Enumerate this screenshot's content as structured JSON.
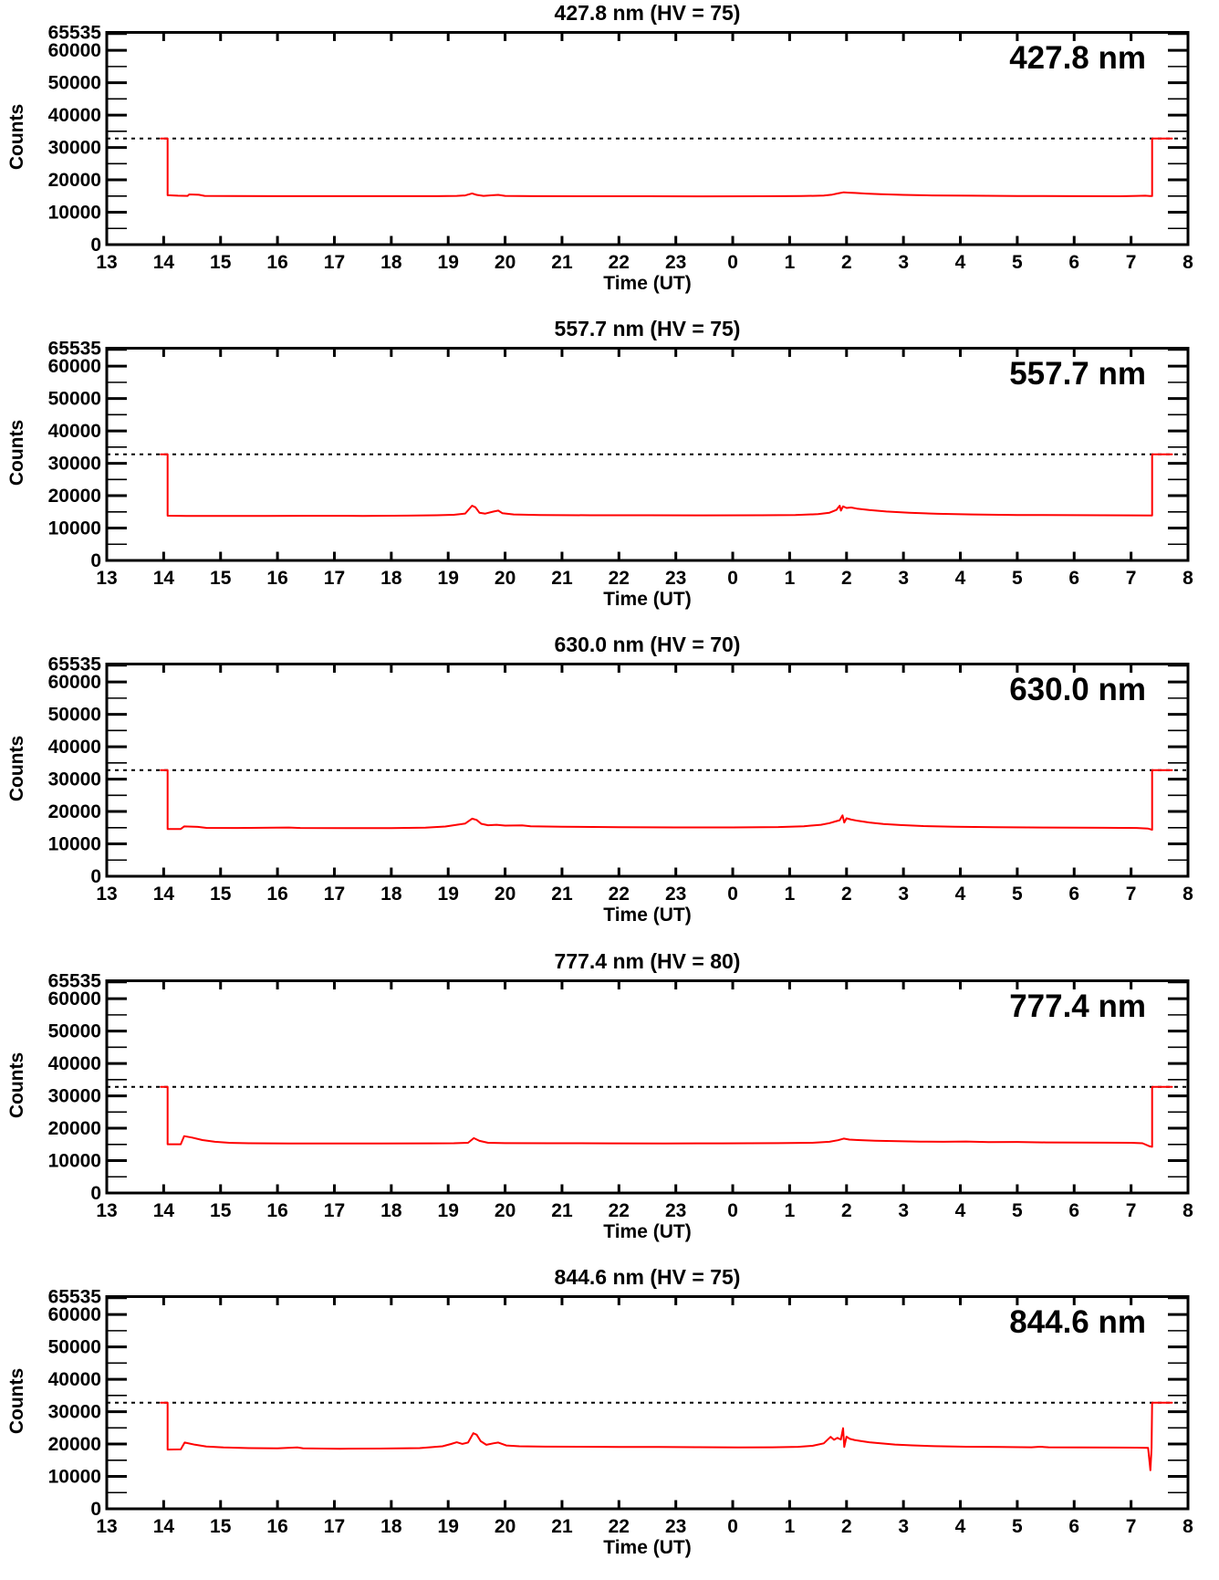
{
  "figure": {
    "background": "#ffffff",
    "trace_color": "#ff0000",
    "axis_color": "#000000"
  },
  "axes": {
    "y_label": "Counts",
    "x_label": "Time (UT)",
    "y_tick_labels": [
      "0",
      "10000",
      "20000",
      "30000",
      "40000",
      "50000",
      "60000",
      "65535"
    ],
    "y_tick_values": [
      0,
      10000,
      20000,
      30000,
      40000,
      50000,
      60000,
      65535
    ],
    "y_minor_tick_values": [
      5000,
      15000,
      25000,
      35000,
      45000,
      55000,
      65000
    ],
    "x_tick_labels": [
      "13",
      "14",
      "15",
      "16",
      "17",
      "18",
      "19",
      "20",
      "21",
      "22",
      "23",
      "0",
      "1",
      "2",
      "3",
      "4",
      "5",
      "6",
      "7",
      "8"
    ],
    "x_tick_hours": [
      13,
      14,
      15,
      16,
      17,
      18,
      19,
      20,
      21,
      22,
      23,
      0,
      1,
      2,
      3,
      4,
      5,
      6,
      7,
      8
    ]
  },
  "chart_data": [
    {
      "type": "line",
      "title": "427.8 nm (HV = 75)",
      "inplot_label": "427.8 nm",
      "wavelength_nm": 427.8,
      "hv": 75,
      "xlabel": "Time (UT)",
      "ylabel": "Counts",
      "ylim": [
        0,
        65535
      ],
      "threshold_line": 32767,
      "line_color": "#ff0000",
      "x_unit": "UT decimal hour",
      "points": [
        [
          13.95,
          32767
        ],
        [
          14.07,
          32767
        ],
        [
          14.07,
          15250
        ],
        [
          14.25,
          15100
        ],
        [
          14.42,
          15050
        ],
        [
          14.45,
          15500
        ],
        [
          14.62,
          15400
        ],
        [
          14.72,
          15050
        ],
        [
          15.2,
          15000
        ],
        [
          16,
          14980
        ],
        [
          17,
          14960
        ],
        [
          18,
          14980
        ],
        [
          18.8,
          14960
        ],
        [
          19.15,
          15050
        ],
        [
          19.3,
          15200
        ],
        [
          19.42,
          15800
        ],
        [
          19.5,
          15350
        ],
        [
          19.62,
          15050
        ],
        [
          19.78,
          15250
        ],
        [
          19.88,
          15350
        ],
        [
          20,
          15050
        ],
        [
          20.5,
          14960
        ],
        [
          21.5,
          14930
        ],
        [
          22.5,
          14930
        ],
        [
          23.5,
          14920
        ],
        [
          0.5,
          14940
        ],
        [
          1.2,
          15000
        ],
        [
          1.6,
          15150
        ],
        [
          1.75,
          15450
        ],
        [
          1.85,
          15800
        ],
        [
          1.95,
          16150
        ],
        [
          2.05,
          16050
        ],
        [
          2.15,
          15950
        ],
        [
          2.35,
          15750
        ],
        [
          2.6,
          15550
        ],
        [
          3,
          15350
        ],
        [
          3.5,
          15200
        ],
        [
          4.2,
          15100
        ],
        [
          5,
          15020
        ],
        [
          6,
          14960
        ],
        [
          6.8,
          14930
        ],
        [
          7.1,
          15050
        ],
        [
          7.25,
          15120
        ],
        [
          7.33,
          15020
        ],
        [
          7.37,
          15000
        ],
        [
          7.37,
          32767
        ],
        [
          7.72,
          32767
        ]
      ]
    },
    {
      "type": "line",
      "title": "557.7 nm (HV = 75)",
      "inplot_label": "557.7 nm",
      "wavelength_nm": 557.7,
      "hv": 75,
      "xlabel": "Time (UT)",
      "ylabel": "Counts",
      "ylim": [
        0,
        65535
      ],
      "threshold_line": 32767,
      "line_color": "#ff0000",
      "x_unit": "UT decimal hour",
      "points": [
        [
          13.95,
          32767
        ],
        [
          14.07,
          32767
        ],
        [
          14.07,
          13800
        ],
        [
          14.4,
          13750
        ],
        [
          15,
          13720
        ],
        [
          15.8,
          13750
        ],
        [
          16.5,
          13780
        ],
        [
          17.5,
          13750
        ],
        [
          18.3,
          13850
        ],
        [
          18.8,
          13950
        ],
        [
          19.1,
          14100
        ],
        [
          19.3,
          14500
        ],
        [
          19.42,
          16900
        ],
        [
          19.48,
          16400
        ],
        [
          19.55,
          14700
        ],
        [
          19.65,
          14450
        ],
        [
          19.8,
          15100
        ],
        [
          19.88,
          15400
        ],
        [
          19.95,
          14600
        ],
        [
          20.15,
          14200
        ],
        [
          20.6,
          14050
        ],
        [
          21.5,
          13950
        ],
        [
          22.5,
          13950
        ],
        [
          23.5,
          13930
        ],
        [
          0.5,
          13960
        ],
        [
          1.1,
          14050
        ],
        [
          1.5,
          14300
        ],
        [
          1.7,
          14750
        ],
        [
          1.82,
          15600
        ],
        [
          1.88,
          16900
        ],
        [
          1.9,
          15400
        ],
        [
          1.94,
          16700
        ],
        [
          2,
          16200
        ],
        [
          2.08,
          16350
        ],
        [
          2.18,
          16000
        ],
        [
          2.4,
          15550
        ],
        [
          2.7,
          15100
        ],
        [
          3.1,
          14700
        ],
        [
          3.6,
          14400
        ],
        [
          4.2,
          14200
        ],
        [
          5,
          14050
        ],
        [
          6,
          13980
        ],
        [
          7,
          13920
        ],
        [
          7.37,
          13900
        ],
        [
          7.37,
          32767
        ],
        [
          7.72,
          32767
        ]
      ]
    },
    {
      "type": "line",
      "title": "630.0 nm (HV = 70)",
      "inplot_label": "630.0 nm",
      "wavelength_nm": 630.0,
      "hv": 70,
      "xlabel": "Time (UT)",
      "ylabel": "Counts",
      "ylim": [
        0,
        65535
      ],
      "threshold_line": 32767,
      "line_color": "#ff0000",
      "x_unit": "UT decimal hour",
      "points": [
        [
          13.95,
          32767
        ],
        [
          14.07,
          32767
        ],
        [
          14.07,
          14600
        ],
        [
          14.3,
          14600
        ],
        [
          14.36,
          15400
        ],
        [
          14.6,
          15250
        ],
        [
          14.75,
          14950
        ],
        [
          15.3,
          14900
        ],
        [
          16.2,
          15050
        ],
        [
          16.4,
          14900
        ],
        [
          17.2,
          14850
        ],
        [
          18,
          14880
        ],
        [
          18.6,
          15000
        ],
        [
          18.95,
          15350
        ],
        [
          19.15,
          15900
        ],
        [
          19.3,
          16300
        ],
        [
          19.42,
          17800
        ],
        [
          19.5,
          17400
        ],
        [
          19.58,
          16200
        ],
        [
          19.7,
          15750
        ],
        [
          19.85,
          15900
        ],
        [
          20,
          15650
        ],
        [
          20.3,
          15700
        ],
        [
          20.45,
          15450
        ],
        [
          21,
          15300
        ],
        [
          22,
          15150
        ],
        [
          23,
          15080
        ],
        [
          0,
          15080
        ],
        [
          0.8,
          15180
        ],
        [
          1.25,
          15450
        ],
        [
          1.55,
          15900
        ],
        [
          1.7,
          16400
        ],
        [
          1.8,
          16900
        ],
        [
          1.88,
          17300
        ],
        [
          1.93,
          18800
        ],
        [
          1.96,
          16600
        ],
        [
          2,
          17900
        ],
        [
          2.08,
          17500
        ],
        [
          2.2,
          17100
        ],
        [
          2.4,
          16600
        ],
        [
          2.65,
          16150
        ],
        [
          2.95,
          15800
        ],
        [
          3.35,
          15500
        ],
        [
          3.9,
          15300
        ],
        [
          4.6,
          15150
        ],
        [
          5.5,
          15050
        ],
        [
          6.5,
          14980
        ],
        [
          7.1,
          14900
        ],
        [
          7.3,
          14700
        ],
        [
          7.37,
          14350
        ],
        [
          7.37,
          32767
        ],
        [
          7.72,
          32767
        ]
      ]
    },
    {
      "type": "line",
      "title": "777.4 nm (HV = 80)",
      "inplot_label": "777.4 nm",
      "wavelength_nm": 777.4,
      "hv": 80,
      "xlabel": "Time (UT)",
      "ylabel": "Counts",
      "ylim": [
        0,
        65535
      ],
      "threshold_line": 32767,
      "line_color": "#ff0000",
      "x_unit": "UT decimal hour",
      "points": [
        [
          13.95,
          32767
        ],
        [
          14.07,
          32767
        ],
        [
          14.07,
          15050
        ],
        [
          14.3,
          15050
        ],
        [
          14.36,
          17550
        ],
        [
          14.5,
          17100
        ],
        [
          14.68,
          16350
        ],
        [
          14.9,
          15800
        ],
        [
          15.15,
          15500
        ],
        [
          15.5,
          15350
        ],
        [
          16.2,
          15280
        ],
        [
          17,
          15300
        ],
        [
          17.8,
          15280
        ],
        [
          18.7,
          15320
        ],
        [
          19.1,
          15350
        ],
        [
          19.35,
          15500
        ],
        [
          19.45,
          16950
        ],
        [
          19.55,
          16100
        ],
        [
          19.7,
          15500
        ],
        [
          20,
          15400
        ],
        [
          20.8,
          15350
        ],
        [
          21.8,
          15320
        ],
        [
          22.8,
          15300
        ],
        [
          23.8,
          15320
        ],
        [
          0.8,
          15400
        ],
        [
          1.4,
          15500
        ],
        [
          1.7,
          15800
        ],
        [
          1.85,
          16300
        ],
        [
          1.95,
          16800
        ],
        [
          2.05,
          16500
        ],
        [
          2.2,
          16350
        ],
        [
          2.5,
          16150
        ],
        [
          2.9,
          16000
        ],
        [
          3.3,
          15880
        ],
        [
          3.7,
          15800
        ],
        [
          4.1,
          15900
        ],
        [
          4.5,
          15720
        ],
        [
          5,
          15750
        ],
        [
          5.5,
          15620
        ],
        [
          6.1,
          15600
        ],
        [
          6.6,
          15520
        ],
        [
          7,
          15500
        ],
        [
          7.2,
          15350
        ],
        [
          7.33,
          14400
        ],
        [
          7.37,
          14250
        ],
        [
          7.37,
          32767
        ],
        [
          7.72,
          32767
        ]
      ]
    },
    {
      "type": "line",
      "title": "844.6 nm (HV = 75)",
      "inplot_label": "844.6 nm",
      "wavelength_nm": 844.6,
      "hv": 75,
      "xlabel": "Time (UT)",
      "ylabel": "Counts",
      "ylim": [
        0,
        65535
      ],
      "threshold_line": 32767,
      "line_color": "#ff0000",
      "x_unit": "UT decimal hour",
      "points": [
        [
          13.95,
          32767
        ],
        [
          14.07,
          32767
        ],
        [
          14.07,
          18300
        ],
        [
          14.3,
          18350
        ],
        [
          14.37,
          20450
        ],
        [
          14.55,
          19800
        ],
        [
          14.75,
          19250
        ],
        [
          15.05,
          18950
        ],
        [
          15.5,
          18750
        ],
        [
          16,
          18650
        ],
        [
          16.35,
          18950
        ],
        [
          16.45,
          18650
        ],
        [
          17.1,
          18550
        ],
        [
          17.8,
          18600
        ],
        [
          18.5,
          18750
        ],
        [
          18.9,
          19300
        ],
        [
          19.05,
          20000
        ],
        [
          19.15,
          20550
        ],
        [
          19.25,
          20050
        ],
        [
          19.35,
          20450
        ],
        [
          19.44,
          23350
        ],
        [
          19.5,
          22900
        ],
        [
          19.57,
          20900
        ],
        [
          19.67,
          19750
        ],
        [
          19.8,
          20250
        ],
        [
          19.88,
          20450
        ],
        [
          20.02,
          19550
        ],
        [
          20.25,
          19300
        ],
        [
          20.7,
          19200
        ],
        [
          21.3,
          19180
        ],
        [
          22,
          19120
        ],
        [
          22.7,
          19100
        ],
        [
          23.4,
          19020
        ],
        [
          0.1,
          18980
        ],
        [
          0.7,
          19000
        ],
        [
          1.15,
          19150
        ],
        [
          1.4,
          19450
        ],
        [
          1.6,
          20200
        ],
        [
          1.72,
          22200
        ],
        [
          1.78,
          21300
        ],
        [
          1.84,
          21900
        ],
        [
          1.9,
          21400
        ],
        [
          1.94,
          24900
        ],
        [
          1.96,
          19100
        ],
        [
          2,
          22300
        ],
        [
          2.06,
          21600
        ],
        [
          2.14,
          21250
        ],
        [
          2.25,
          20950
        ],
        [
          2.4,
          20550
        ],
        [
          2.6,
          20200
        ],
        [
          2.85,
          19850
        ],
        [
          3.15,
          19600
        ],
        [
          3.55,
          19350
        ],
        [
          4.1,
          19180
        ],
        [
          4.7,
          19080
        ],
        [
          5.25,
          19000
        ],
        [
          5.4,
          19180
        ],
        [
          5.55,
          19000
        ],
        [
          6.1,
          18950
        ],
        [
          6.7,
          18900
        ],
        [
          7.1,
          18880
        ],
        [
          7.3,
          18820
        ],
        [
          7.34,
          11900
        ],
        [
          7.36,
          18800
        ],
        [
          7.37,
          32767
        ],
        [
          7.72,
          32767
        ]
      ]
    }
  ]
}
